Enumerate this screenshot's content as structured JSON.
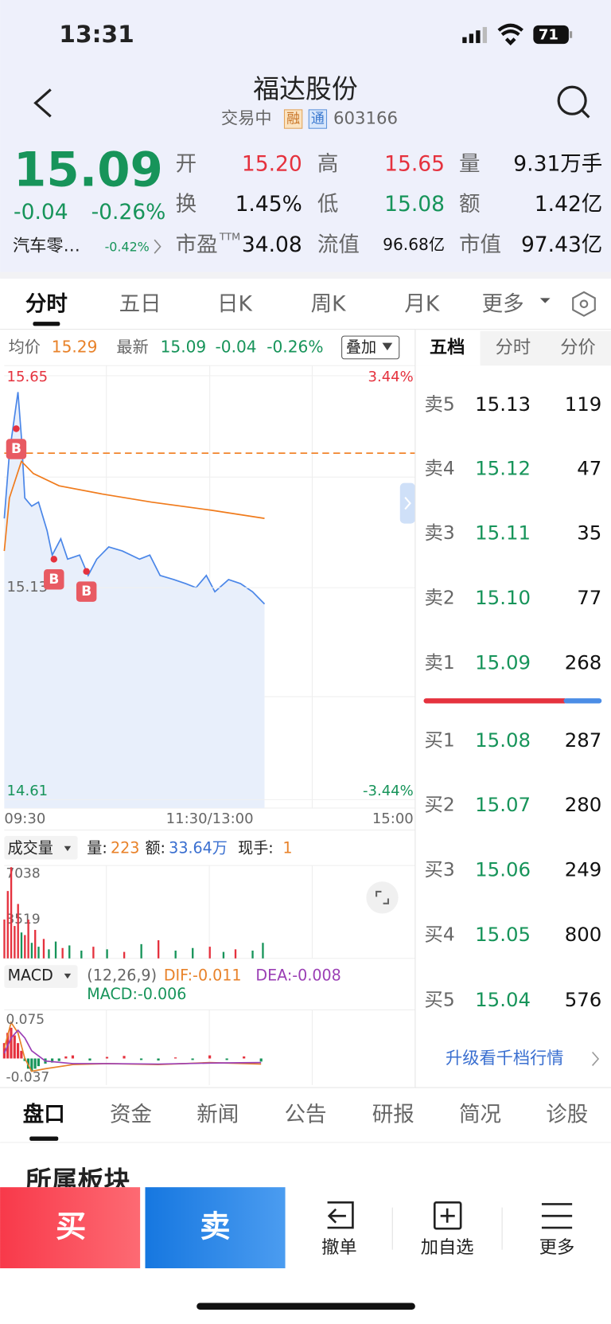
{
  "status_bar": {
    "time": "13:31",
    "battery": "71"
  },
  "header": {
    "title": "福达股份",
    "status": "交易中",
    "badges": [
      "融",
      "通"
    ],
    "code": "603166"
  },
  "quote": {
    "price": "15.09",
    "change": "-0.04",
    "change_pct": "-0.26%",
    "sector": "汽车零…",
    "sector_pct": "-0.42%",
    "stats": [
      [
        {
          "label": "开",
          "value": "15.20",
          "color": "red"
        },
        {
          "label": "高",
          "value": "15.65",
          "color": "red"
        },
        {
          "label": "量",
          "value": "9.31万手",
          "color": "black"
        }
      ],
      [
        {
          "label": "换",
          "value": "1.45%",
          "color": "black"
        },
        {
          "label": "低",
          "value": "15.08",
          "color": "green"
        },
        {
          "label": "额",
          "value": "1.42亿",
          "color": "black"
        }
      ],
      [
        {
          "label": "市盈",
          "sup": "TTM",
          "value": "34.08",
          "color": "black"
        },
        {
          "label": "流值",
          "value": "96.68亿",
          "color": "black",
          "small": true
        },
        {
          "label": "市值",
          "value": "97.43亿",
          "color": "black"
        }
      ]
    ]
  },
  "period_tabs": {
    "items": [
      "分时",
      "五日",
      "日K",
      "周K",
      "月K",
      "更多"
    ],
    "active": 0
  },
  "chart_info": {
    "avg_label": "均价",
    "avg": "15.29",
    "latest_label": "最新",
    "latest": "15.09",
    "change": "-0.04",
    "change_pct": "-0.26%",
    "overlay": "叠加"
  },
  "cost_line": 15.46,
  "trade_marks": [
    {
      "label": "B",
      "minute": 7,
      "price": 15.52
    },
    {
      "label": "B",
      "minute": 29,
      "price": 15.2
    },
    {
      "label": "B",
      "minute": 48,
      "price": 15.17
    }
  ],
  "chart_data": [
    {
      "type": "line",
      "xlim": [
        0,
        240
      ],
      "ylim": [
        14.61,
        15.65
      ],
      "yticks": [
        14.61,
        15.13,
        15.65
      ],
      "y2lim": [
        -3.44,
        3.44
      ],
      "y2ticks": [
        {
          "value": 3.44,
          "label": "3.44%"
        },
        {
          "value": -3.44,
          "label": "-3.44%"
        }
      ],
      "xticks": [
        {
          "value": 0,
          "label": "09:30"
        },
        {
          "value": 120,
          "label": "11:30/13:00"
        },
        {
          "value": 240,
          "label": "15:00"
        }
      ],
      "series": [
        {
          "color": "#4a86e8",
          "area": true,
          "x": [
            0,
            3,
            8,
            10,
            12,
            16,
            20,
            25,
            28,
            33,
            37,
            44,
            49,
            54,
            61,
            69,
            79,
            85,
            91,
            99,
            106,
            112,
            118,
            123,
            131,
            138,
            145,
            152
          ],
          "values": [
            15.3,
            15.46,
            15.61,
            15.5,
            15.35,
            15.33,
            15.34,
            15.27,
            15.21,
            15.25,
            15.2,
            15.21,
            15.16,
            15.2,
            15.23,
            15.22,
            15.2,
            15.21,
            15.16,
            15.15,
            15.14,
            15.13,
            15.16,
            15.12,
            15.15,
            15.14,
            15.12,
            15.09
          ]
        },
        {
          "color": "#f07b1c",
          "x": [
            0,
            3,
            10,
            17,
            32,
            57,
            86,
            121,
            152
          ],
          "values": [
            15.22,
            15.35,
            15.44,
            15.41,
            15.38,
            15.36,
            15.34,
            15.32,
            15.3
          ]
        }
      ]
    },
    {
      "type": "bar",
      "xlim": [
        0,
        240
      ],
      "ylim": [
        0,
        7038
      ],
      "yticks": [
        3519,
        7038
      ],
      "x": [
        0,
        2,
        4,
        6,
        8,
        10,
        12,
        14,
        16,
        18,
        20,
        23,
        26,
        30,
        34,
        38,
        45,
        52,
        60,
        70,
        80,
        90,
        100,
        110,
        120,
        128,
        135,
        145,
        151
      ],
      "values": [
        3000,
        5200,
        7038,
        2500,
        4200,
        2000,
        1800,
        3000,
        1200,
        2200,
        900,
        1500,
        700,
        1300,
        800,
        1000,
        600,
        900,
        700,
        500,
        1100,
        1400,
        600,
        800,
        900,
        500,
        700,
        600,
        1200
      ],
      "colors": [
        "#e5323e",
        "#e5323e",
        "#e5323e",
        "#e5323e",
        "#e5323e",
        "#17945a",
        "#e5323e",
        "#e5323e",
        "#17945a",
        "#e5323e",
        "#17945a",
        "#e5323e",
        "#17945a",
        "#17945a",
        "#e5323e",
        "#17945a",
        "#17945a",
        "#e5323e",
        "#17945a",
        "#e5323e",
        "#17945a",
        "#e5323e",
        "#17945a",
        "#17945a",
        "#e5323e",
        "#17945a",
        "#e5323e",
        "#17945a",
        "#17945a"
      ]
    },
    {
      "type": "macd",
      "xlim": [
        0,
        240
      ],
      "ylim": [
        -0.037,
        0.075
      ],
      "yticks": [
        -0.037,
        0.075
      ],
      "x": [
        0,
        2,
        4,
        6,
        8,
        10,
        12,
        14,
        16,
        18,
        20,
        24,
        28,
        32,
        36,
        40,
        50,
        60,
        70,
        80,
        90,
        100,
        110,
        120,
        130,
        140,
        150
      ],
      "values": [
        0.03,
        0.05,
        0.06,
        0.045,
        0.03,
        0.015,
        -0.005,
        -0.02,
        -0.025,
        -0.02,
        -0.015,
        -0.01,
        -0.008,
        -0.005,
        0.004,
        0.006,
        -0.004,
        0.003,
        0.005,
        -0.003,
        -0.004,
        0.002,
        -0.003,
        0.006,
        -0.003,
        0.004,
        -0.006
      ],
      "series": [
        {
          "color": "#e8822a",
          "x": [
            0,
            4,
            8,
            12,
            16,
            24,
            40,
            60,
            90,
            120,
            150
          ],
          "values": [
            0.02,
            0.07,
            0.05,
            0.0,
            -0.025,
            -0.02,
            -0.012,
            -0.01,
            -0.012,
            -0.008,
            -0.011
          ]
        },
        {
          "color": "#9b3fb5",
          "x": [
            0,
            4,
            8,
            12,
            16,
            24,
            40,
            60,
            90,
            120,
            150
          ],
          "values": [
            0.01,
            0.04,
            0.055,
            0.04,
            0.015,
            -0.005,
            -0.01,
            -0.01,
            -0.011,
            -0.009,
            -0.008
          ]
        }
      ]
    }
  ],
  "volume_info": {
    "selector": "成交量",
    "vol_label": "量:",
    "vol": "223",
    "amount_label": "额:",
    "amount": "33.64万",
    "hand_label": "现手:",
    "hand": "1"
  },
  "macd_info": {
    "selector": "MACD",
    "params": "(12,26,9)",
    "dif": "DIF:-0.011",
    "dea": "DEA:-0.008",
    "macd": "MACD:-0.006"
  },
  "order_book": {
    "tabs": [
      "五档",
      "分时",
      "分价"
    ],
    "asks": [
      {
        "label": "卖5",
        "price": "15.13",
        "volume": "119",
        "color": "black"
      },
      {
        "label": "卖4",
        "price": "15.12",
        "volume": "47",
        "color": "green"
      },
      {
        "label": "卖3",
        "price": "15.11",
        "volume": "35",
        "color": "green"
      },
      {
        "label": "卖2",
        "price": "15.10",
        "volume": "77",
        "color": "green"
      },
      {
        "label": "卖1",
        "price": "15.09",
        "volume": "268",
        "color": "green"
      }
    ],
    "bids": [
      {
        "label": "买1",
        "price": "15.08",
        "volume": "287",
        "color": "green"
      },
      {
        "label": "买2",
        "price": "15.07",
        "volume": "280",
        "color": "green"
      },
      {
        "label": "买3",
        "price": "15.06",
        "volume": "249",
        "color": "green"
      },
      {
        "label": "买4",
        "price": "15.05",
        "volume": "800",
        "color": "green"
      },
      {
        "label": "买5",
        "price": "15.04",
        "volume": "576",
        "color": "green"
      }
    ],
    "upgrade_link": "升级看千档行情"
  },
  "detail_tabs": {
    "items": [
      "盘口",
      "资金",
      "新闻",
      "公告",
      "研报",
      "简况",
      "诊股"
    ],
    "active": 0
  },
  "section_title": "所属板块",
  "bottom_bar": {
    "buy": "买",
    "sell": "卖",
    "actions": [
      "撤单",
      "加自选",
      "更多"
    ]
  }
}
